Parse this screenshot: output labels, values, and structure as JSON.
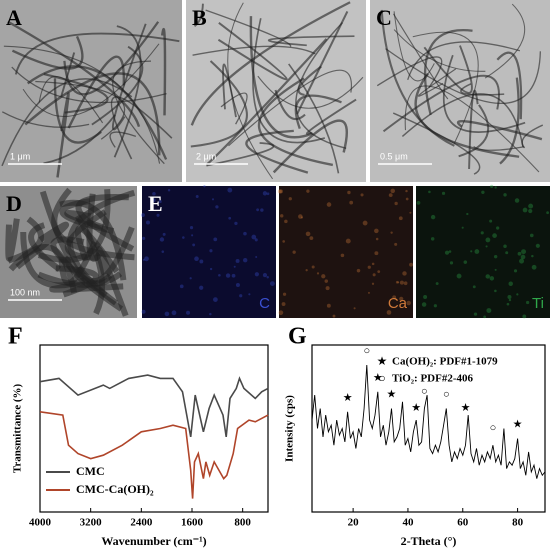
{
  "images": [
    {
      "label": "A",
      "scale_bar": "1 μm"
    },
    {
      "label": "B",
      "scale_bar": "2 μm"
    },
    {
      "label": "C",
      "scale_bar": "0.5 μm"
    },
    {
      "label": "D",
      "scale_bar": "100 nm"
    }
  ],
  "mapping": {
    "label": "E",
    "elements": [
      "C",
      "Ca",
      "Ti"
    ]
  },
  "chart_data": [
    {
      "type": "line",
      "panel_label": "F",
      "xlabel": "Wavenumber (cm⁻¹)",
      "ylabel": "Transmittance (%)",
      "xlim": [
        4000,
        400
      ],
      "xticks": [
        4000,
        3200,
        2400,
        1600,
        800
      ],
      "ylim": [
        0,
        100
      ],
      "series": [
        {
          "name": "CMC",
          "color": "#4a4a4a",
          "x": [
            4000,
            3700,
            3400,
            3000,
            2900,
            2600,
            2300,
            2100,
            1900,
            1750,
            1620,
            1550,
            1420,
            1330,
            1250,
            1110,
            1060,
            1000,
            900,
            850,
            780,
            600,
            500,
            400
          ],
          "values": [
            78,
            80,
            70,
            76,
            74,
            80,
            82,
            80,
            80,
            72,
            45,
            70,
            48,
            62,
            70,
            58,
            45,
            68,
            74,
            80,
            74,
            68,
            72,
            74
          ]
        },
        {
          "name": "CMC-Ca(OH)₂",
          "color": "#b0452a",
          "x": [
            4000,
            3640,
            3550,
            3400,
            3200,
            3000,
            2700,
            2400,
            2100,
            1900,
            1700,
            1620,
            1590,
            1560,
            1500,
            1420,
            1380,
            1320,
            1250,
            1100,
            1050,
            950,
            880,
            700,
            600,
            400
          ],
          "values": [
            60,
            58,
            40,
            35,
            32,
            34,
            40,
            48,
            50,
            52,
            50,
            25,
            8,
            30,
            35,
            20,
            30,
            22,
            30,
            20,
            22,
            35,
            50,
            55,
            54,
            58
          ]
        }
      ]
    },
    {
      "type": "line",
      "panel_label": "G",
      "xlabel": "2-Theta (°)",
      "ylabel": "Intensity (cps)",
      "xlim": [
        5,
        90
      ],
      "xticks": [
        20,
        40,
        60,
        80
      ],
      "ylim": [
        0,
        100
      ],
      "series": [
        {
          "color": "#000000",
          "x": [
            5,
            6,
            7,
            8,
            9,
            10,
            11,
            12,
            13,
            14,
            15,
            16,
            17,
            18,
            19,
            20,
            21,
            22,
            23,
            24,
            25,
            26,
            27,
            28,
            29,
            30,
            31,
            32,
            33,
            34,
            35,
            36,
            37,
            38,
            39,
            40,
            41,
            42,
            43,
            44,
            45,
            46,
            47,
            48,
            49,
            50,
            51,
            52,
            53,
            54,
            55,
            56,
            57,
            58,
            59,
            60,
            61,
            62,
            63,
            64,
            65,
            66,
            67,
            68,
            69,
            70,
            71,
            72,
            73,
            74,
            75,
            76,
            77,
            78,
            79,
            80,
            81,
            82,
            83,
            84,
            85,
            86,
            87,
            88,
            89,
            90
          ],
          "values": [
            55,
            70,
            50,
            62,
            45,
            58,
            48,
            52,
            40,
            55,
            46,
            50,
            42,
            60,
            44,
            48,
            38,
            50,
            45,
            62,
            88,
            55,
            50,
            58,
            72,
            45,
            52,
            40,
            48,
            62,
            42,
            45,
            50,
            66,
            40,
            44,
            36,
            48,
            55,
            40,
            42,
            62,
            70,
            38,
            35,
            40,
            36,
            42,
            52,
            62,
            40,
            30,
            36,
            32,
            38,
            34,
            40,
            58,
            35,
            30,
            38,
            28,
            34,
            30,
            36,
            32,
            40,
            30,
            34,
            28,
            50,
            26,
            30,
            28,
            32,
            44,
            26,
            30,
            22,
            36,
            24,
            28,
            20,
            26,
            22,
            24
          ]
        }
      ],
      "legend": [
        {
          "symbol": "★",
          "text": "Ca(OH)₂: PDF#1-1079"
        },
        {
          "symbol": "○",
          "text": "TiO₂: PDF#2-406"
        }
      ],
      "markers": [
        {
          "symbol": "★",
          "x": 18,
          "y": 68
        },
        {
          "symbol": "○",
          "x": 25,
          "y": 96
        },
        {
          "symbol": "★",
          "x": 29,
          "y": 80
        },
        {
          "symbol": "★",
          "x": 34,
          "y": 70
        },
        {
          "symbol": "★",
          "x": 43,
          "y": 62
        },
        {
          "symbol": "○",
          "x": 46,
          "y": 72
        },
        {
          "symbol": "○",
          "x": 54,
          "y": 70
        },
        {
          "symbol": "★",
          "x": 61,
          "y": 62
        },
        {
          "symbol": "○",
          "x": 71,
          "y": 50
        },
        {
          "symbol": "★",
          "x": 80,
          "y": 52
        }
      ]
    }
  ]
}
